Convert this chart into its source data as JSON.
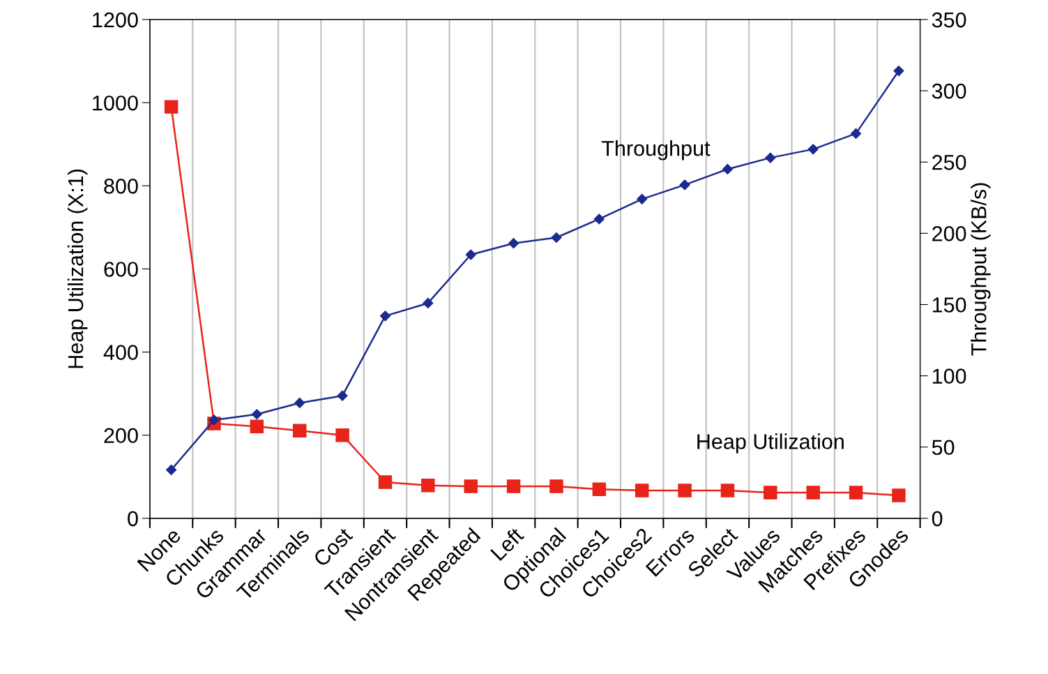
{
  "chart_data": {
    "type": "line",
    "xlabel": null,
    "ylabel": "Heap Utilization (X:1)",
    "y2label": "Throughput (KB/s)",
    "categories": [
      "None",
      "Chunks",
      "Grammar",
      "Terminals",
      "Cost",
      "Transient",
      "Nontransient",
      "Repeated",
      "Left",
      "Optional",
      "Choices1",
      "Choices2",
      "Errors",
      "Select",
      "Values",
      "Matches",
      "Prefixes",
      "Gnodes"
    ],
    "series": [
      {
        "name": "Heap Utilization",
        "color": "#e8231a",
        "marker": "square",
        "values": [
          990,
          228,
          221,
          211,
          200,
          87,
          79,
          77,
          77,
          77,
          70,
          67,
          67,
          67,
          62,
          62,
          62,
          55
        ]
      },
      {
        "name": "Throughput",
        "color": "#1c2a8f",
        "marker": "diamond",
        "axis": "y2",
        "values": [
          34,
          69,
          73,
          81,
          86,
          142,
          151,
          185,
          193,
          197,
          210,
          224,
          234,
          245,
          253,
          259,
          270,
          314
        ]
      }
    ],
    "ylim": [
      0,
      1200
    ],
    "yticks": [
      0,
      200,
      400,
      600,
      800,
      1000,
      1200
    ],
    "y2lim": [
      0,
      350
    ],
    "y2ticks": [
      0,
      50,
      100,
      150,
      200,
      250,
      300,
      350
    ],
    "grid": "x",
    "legend": false,
    "line_style": "solid"
  }
}
